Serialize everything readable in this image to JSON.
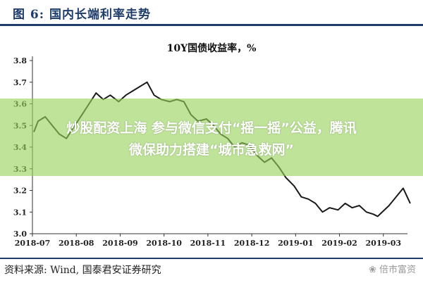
{
  "figure": {
    "header": "图 6:  国内长端利率走势",
    "source": "资料来源:  Wind,  国泰君安证券研究",
    "watermark": "❀ 倍市富资",
    "accent_color": "#1f3d6b"
  },
  "overlay": {
    "line1": "炒股配资上海 参与微信支付“摇一摇”公益，腾讯",
    "line2": "微保助力搭建“城市急救网”",
    "color": "#96d25a"
  },
  "chart_data": {
    "type": "line",
    "title": "10Y国债收益率，%",
    "xlabel": "",
    "ylabel": "",
    "ylim": [
      3.0,
      3.8
    ],
    "yticks": [
      "3.0",
      "3.1",
      "3.2",
      "3.3",
      "3.4",
      "3.5",
      "3.6",
      "3.7",
      "3.8"
    ],
    "xticks": [
      "2018-07",
      "2018-08",
      "2018-09",
      "2018-10",
      "2018-11",
      "2018-12",
      "2019-01",
      "2019-02",
      "2019-03"
    ],
    "grid": false,
    "legend": "none",
    "line_color": "#1a1a1a",
    "series": [
      {
        "x": [
          "2018-07-02",
          "2018-07-05",
          "2018-07-10",
          "2018-07-15",
          "2018-07-20",
          "2018-07-25",
          "2018-07-31",
          "2018-08-05",
          "2018-08-10",
          "2018-08-15",
          "2018-08-20",
          "2018-08-25",
          "2018-08-31",
          "2018-09-05",
          "2018-09-10",
          "2018-09-15",
          "2018-09-20",
          "2018-09-25",
          "2018-09-30",
          "2018-10-05",
          "2018-10-10",
          "2018-10-15",
          "2018-10-20",
          "2018-10-25",
          "2018-10-31",
          "2018-11-05",
          "2018-11-10",
          "2018-11-15",
          "2018-11-20",
          "2018-11-25",
          "2018-11-30",
          "2018-12-05",
          "2018-12-10",
          "2018-12-15",
          "2018-12-20",
          "2018-12-25",
          "2018-12-31",
          "2019-01-05",
          "2019-01-10",
          "2019-01-15",
          "2019-01-20",
          "2019-01-25",
          "2019-01-31",
          "2019-02-05",
          "2019-02-10",
          "2019-02-15",
          "2019-02-20",
          "2019-02-25",
          "2019-02-28",
          "2019-03-05",
          "2019-03-10",
          "2019-03-15",
          "2019-03-20"
        ],
        "values": [
          3.47,
          3.52,
          3.54,
          3.5,
          3.46,
          3.44,
          3.5,
          3.55,
          3.6,
          3.65,
          3.62,
          3.64,
          3.61,
          3.64,
          3.66,
          3.68,
          3.7,
          3.64,
          3.62,
          3.61,
          3.62,
          3.61,
          3.55,
          3.52,
          3.53,
          3.5,
          3.46,
          3.44,
          3.4,
          3.42,
          3.41,
          3.36,
          3.33,
          3.35,
          3.31,
          3.26,
          3.22,
          3.17,
          3.16,
          3.14,
          3.1,
          3.12,
          3.11,
          3.14,
          3.12,
          3.13,
          3.1,
          3.09,
          3.08,
          3.13,
          3.17,
          3.21,
          3.14
        ]
      }
    ]
  }
}
